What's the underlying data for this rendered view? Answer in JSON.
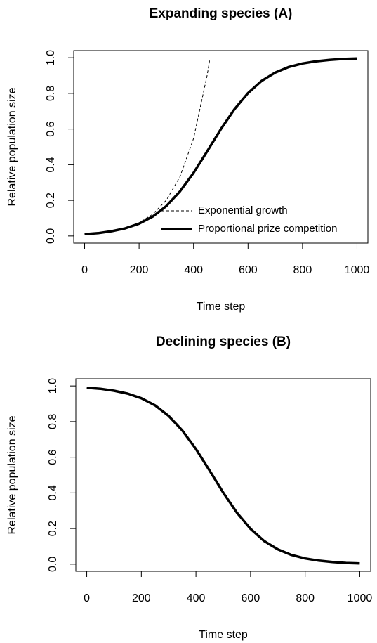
{
  "chart_data": [
    {
      "type": "line",
      "title": "Expanding species (A)",
      "xlabel": "Time step",
      "ylabel": "Relative population size",
      "xlim": [
        -40,
        1040
      ],
      "ylim": [
        -0.04,
        1.04
      ],
      "xticks": [
        0,
        200,
        400,
        600,
        800,
        1000
      ],
      "yticks": [
        {
          "value": 0,
          "label": "0.0"
        },
        {
          "value": 0.2,
          "label": "0.2"
        },
        {
          "value": 0.4,
          "label": "0.4"
        },
        {
          "value": 0.6,
          "label": "0.6"
        },
        {
          "value": 0.8,
          "label": "0.8"
        },
        {
          "value": 1,
          "label": "1.0"
        }
      ],
      "legend": "bottomright",
      "series": [
        {
          "name": "Exponential growth",
          "color": "#000000",
          "linestyle": "dashed",
          "linewidth": 1,
          "x": [
            0,
            50,
            100,
            150,
            200,
            250,
            300,
            350,
            400,
            450,
            460
          ],
          "values": [
            0.01,
            0.016,
            0.027,
            0.045,
            0.074,
            0.122,
            0.201,
            0.332,
            0.547,
            0.902,
            0.995
          ]
        },
        {
          "name": "Proportional prize competition",
          "color": "#000000",
          "linestyle": "solid",
          "linewidth": 3.5,
          "x": [
            0,
            50,
            100,
            150,
            200,
            250,
            300,
            350,
            400,
            450,
            500,
            550,
            600,
            650,
            700,
            750,
            800,
            850,
            900,
            950,
            1000
          ],
          "values": [
            0.01,
            0.016,
            0.027,
            0.043,
            0.069,
            0.109,
            0.168,
            0.25,
            0.354,
            0.475,
            0.599,
            0.711,
            0.802,
            0.87,
            0.917,
            0.948,
            0.968,
            0.98,
            0.988,
            0.993,
            0.996
          ]
        }
      ]
    },
    {
      "type": "line",
      "title": "Declining species (B)",
      "xlabel": "Time step",
      "ylabel": "Relative population size",
      "xlim": [
        -40,
        1040
      ],
      "ylim": [
        -0.04,
        1.04
      ],
      "xticks": [
        0,
        200,
        400,
        600,
        800,
        1000
      ],
      "yticks": [
        {
          "value": 0,
          "label": "0.0"
        },
        {
          "value": 0.2,
          "label": "0.2"
        },
        {
          "value": 0.4,
          "label": "0.4"
        },
        {
          "value": 0.6,
          "label": "0.6"
        },
        {
          "value": 0.8,
          "label": "0.8"
        },
        {
          "value": 1,
          "label": "1.0"
        }
      ],
      "series": [
        {
          "color": "#000000",
          "linestyle": "solid",
          "linewidth": 3.5,
          "x": [
            0,
            50,
            100,
            150,
            200,
            250,
            300,
            350,
            400,
            450,
            500,
            550,
            600,
            650,
            700,
            750,
            800,
            850,
            900,
            950,
            1000
          ],
          "values": [
            0.99,
            0.984,
            0.973,
            0.957,
            0.931,
            0.891,
            0.832,
            0.75,
            0.646,
            0.525,
            0.401,
            0.289,
            0.198,
            0.13,
            0.083,
            0.052,
            0.032,
            0.02,
            0.012,
            0.007,
            0.004
          ]
        }
      ]
    }
  ]
}
